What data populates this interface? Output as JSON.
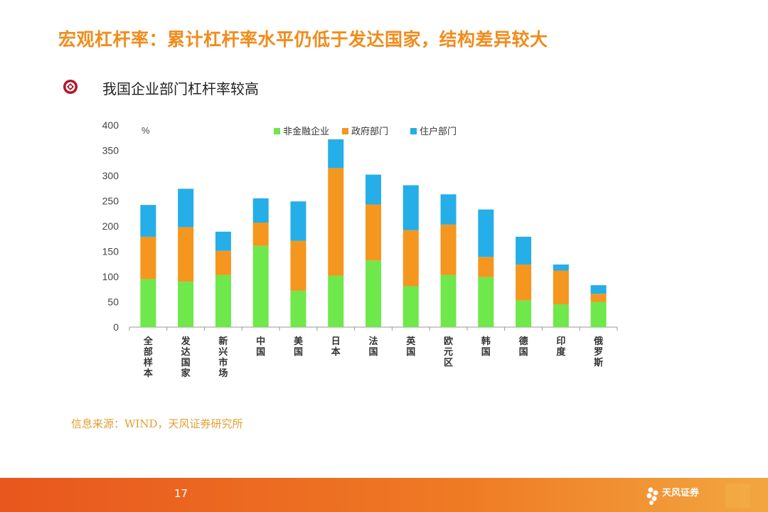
{
  "header": {
    "title": "宏观杠杆率：累计杠杆率水平仍低于发达国家，结构差异较大",
    "subtitle": "我国企业部门杠杆率较高"
  },
  "chart_data": {
    "type": "bar",
    "stacked": true,
    "unit_label": "%",
    "ylim": [
      0,
      400
    ],
    "yticks": [
      0,
      50,
      100,
      150,
      200,
      250,
      300,
      350,
      400
    ],
    "grid": false,
    "legend_position": "top",
    "categories": [
      "全部样本",
      "发达国家",
      "新兴市场",
      "中国",
      "美国",
      "日本",
      "法国",
      "英国",
      "欧元区",
      "韩国",
      "德国",
      "印度",
      "俄罗斯"
    ],
    "series": [
      {
        "name": "非金融企业",
        "color": "#6ee84a",
        "values": [
          95,
          90,
          103,
          161,
          72,
          102,
          132,
          81,
          103,
          99,
          53,
          45,
          50
        ]
      },
      {
        "name": "政府部门",
        "color": "#f5961e",
        "values": [
          84,
          108,
          48,
          46,
          99,
          213,
          111,
          111,
          100,
          40,
          71,
          67,
          16
        ]
      },
      {
        "name": "住户部门",
        "color": "#25aee8",
        "values": [
          63,
          76,
          38,
          48,
          78,
          57,
          59,
          89,
          60,
          94,
          55,
          12,
          17
        ]
      }
    ]
  },
  "source": "信息来源：WIND，天风证券研究所",
  "footer": {
    "page_number": "17",
    "logo_name": "天风证券",
    "logo_icon": "flower-icon"
  }
}
